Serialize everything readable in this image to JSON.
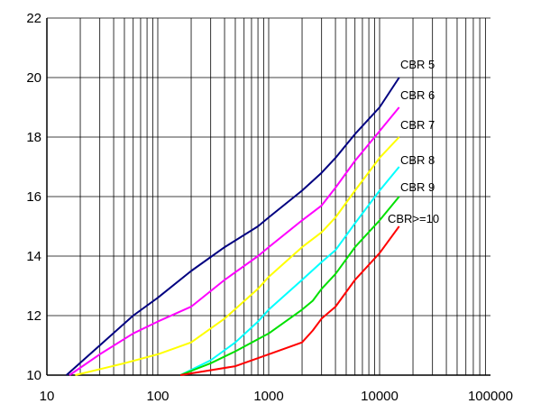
{
  "chart_data": {
    "type": "line",
    "title": "",
    "xlabel": "",
    "ylabel": "",
    "xscale": "log",
    "xlim": [
      10,
      100000
    ],
    "ylim": [
      10,
      22
    ],
    "grid": true,
    "legend": "none (series labels placed at line ends)",
    "x_tick_labels": [
      "10",
      "100",
      "1000",
      "10000",
      "100000"
    ],
    "y_tick_labels": [
      "10",
      "12",
      "14",
      "16",
      "18",
      "20",
      "22"
    ],
    "series": [
      {
        "name": "CBR 5",
        "color": "#000080",
        "points": [
          [
            15,
            10
          ],
          [
            30,
            11
          ],
          [
            60,
            12
          ],
          [
            100,
            12.6
          ],
          [
            200,
            13.5
          ],
          [
            400,
            14.3
          ],
          [
            800,
            15
          ],
          [
            1000,
            15.3
          ],
          [
            2000,
            16.2
          ],
          [
            3000,
            16.8
          ],
          [
            4000,
            17.3
          ],
          [
            6000,
            18.1
          ],
          [
            10000,
            19.0
          ],
          [
            15000,
            20.0
          ]
        ]
      },
      {
        "name": "CBR 6",
        "color": "#ff00ff",
        "points": [
          [
            16,
            10
          ],
          [
            30,
            10.7
          ],
          [
            60,
            11.4
          ],
          [
            100,
            11.8
          ],
          [
            200,
            12.3
          ],
          [
            400,
            13.2
          ],
          [
            800,
            14.0
          ],
          [
            1000,
            14.3
          ],
          [
            2000,
            15.2
          ],
          [
            3000,
            15.7
          ],
          [
            4000,
            16.3
          ],
          [
            6000,
            17.2
          ],
          [
            10000,
            18.2
          ],
          [
            15000,
            19.0
          ]
        ]
      },
      {
        "name": "CBR 7",
        "color": "#ffff00",
        "points": [
          [
            18,
            10
          ],
          [
            50,
            10.4
          ],
          [
            100,
            10.7
          ],
          [
            200,
            11.1
          ],
          [
            400,
            11.9
          ],
          [
            800,
            12.9
          ],
          [
            1000,
            13.3
          ],
          [
            2000,
            14.3
          ],
          [
            3000,
            14.8
          ],
          [
            4000,
            15.3
          ],
          [
            6000,
            16.2
          ],
          [
            10000,
            17.3
          ],
          [
            15000,
            18.0
          ]
        ]
      },
      {
        "name": "CBR 8",
        "color": "#00ffff",
        "points": [
          [
            160,
            10
          ],
          [
            300,
            10.5
          ],
          [
            500,
            11.1
          ],
          [
            800,
            11.8
          ],
          [
            1000,
            12.2
          ],
          [
            2000,
            13.2
          ],
          [
            3000,
            13.8
          ],
          [
            4000,
            14.2
          ],
          [
            6000,
            15.1
          ],
          [
            10000,
            16.2
          ],
          [
            15000,
            17.0
          ]
        ]
      },
      {
        "name": "CBR 9",
        "color": "#00e000",
        "points": [
          [
            160,
            10
          ],
          [
            300,
            10.4
          ],
          [
            500,
            10.8
          ],
          [
            1000,
            11.4
          ],
          [
            2000,
            12.2
          ],
          [
            2500,
            12.5
          ],
          [
            3000,
            12.9
          ],
          [
            4000,
            13.4
          ],
          [
            6000,
            14.3
          ],
          [
            10000,
            15.2
          ],
          [
            15000,
            16.0
          ]
        ]
      },
      {
        "name": "CBR>=10",
        "color": "#ff0000",
        "points": [
          [
            160,
            10
          ],
          [
            500,
            10.3
          ],
          [
            1000,
            10.7
          ],
          [
            2000,
            11.1
          ],
          [
            2500,
            11.5
          ],
          [
            3000,
            11.9
          ],
          [
            4000,
            12.3
          ],
          [
            6000,
            13.2
          ],
          [
            10000,
            14.1
          ],
          [
            15000,
            15.0
          ]
        ]
      }
    ]
  }
}
